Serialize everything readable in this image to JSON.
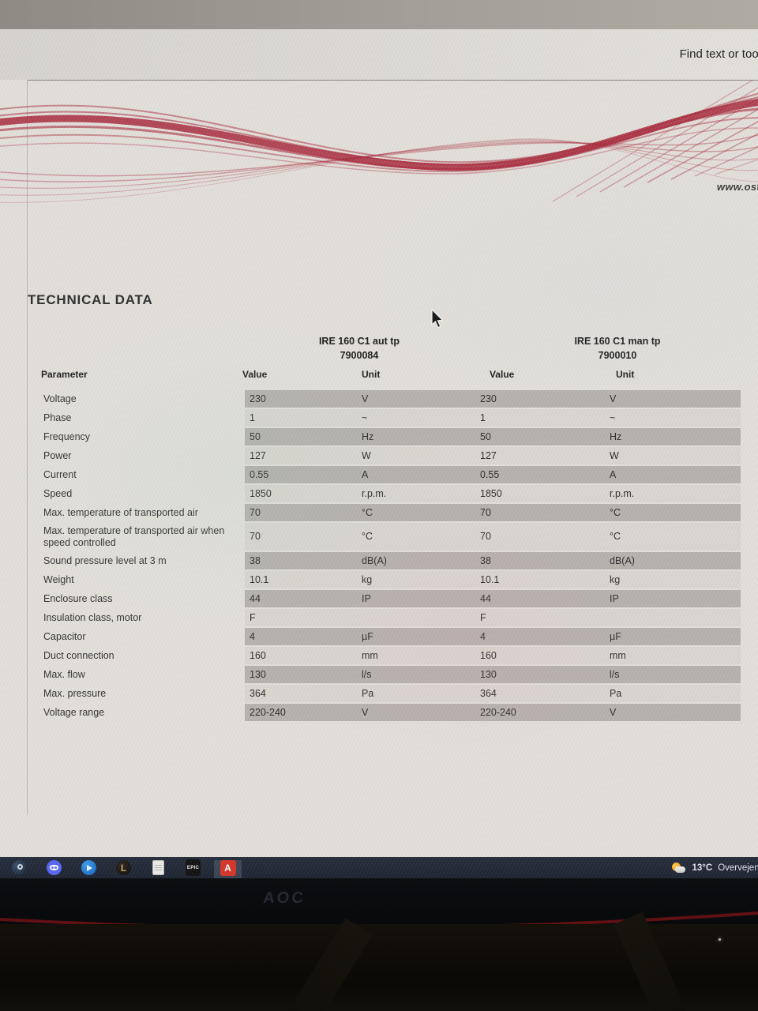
{
  "window": {
    "find_toolbar_label": "Find text or tool"
  },
  "page": {
    "title": "TECHNICAL DATA",
    "website": "www.ost",
    "products": [
      {
        "name": "IRE 160 C1 aut tp",
        "number": "7900084"
      },
      {
        "name": "IRE 160 C1 man tp",
        "number": "7900010"
      }
    ],
    "table": {
      "param_header": "Parameter",
      "value_header": "Value",
      "unit_header": "Unit",
      "rows": [
        {
          "parameter": "Voltage",
          "value1": "230",
          "unit1": "V",
          "value2": "230",
          "unit2": "V"
        },
        {
          "parameter": "Phase",
          "value1": "1",
          "unit1": "~",
          "value2": "1",
          "unit2": "~"
        },
        {
          "parameter": "Frequency",
          "value1": "50",
          "unit1": "Hz",
          "value2": "50",
          "unit2": "Hz"
        },
        {
          "parameter": "Power",
          "value1": "127",
          "unit1": "W",
          "value2": "127",
          "unit2": "W"
        },
        {
          "parameter": "Current",
          "value1": "0.55",
          "unit1": "A",
          "value2": "0.55",
          "unit2": "A"
        },
        {
          "parameter": "Speed",
          "value1": "1850",
          "unit1": "r.p.m.",
          "value2": "1850",
          "unit2": "r.p.m."
        },
        {
          "parameter": "Max. temperature of transported air",
          "value1": "70",
          "unit1": "°C",
          "value2": "70",
          "unit2": "°C"
        },
        {
          "parameter": "Max. temperature of transported air when speed controlled",
          "value1": "70",
          "unit1": "°C",
          "value2": "70",
          "unit2": "°C"
        },
        {
          "parameter": "Sound pressure level at 3 m",
          "value1": "38",
          "unit1": "dB(A)",
          "value2": "38",
          "unit2": "dB(A)"
        },
        {
          "parameter": "Weight",
          "value1": "10.1",
          "unit1": "kg",
          "value2": "10.1",
          "unit2": "kg"
        },
        {
          "parameter": "Enclosure class",
          "value1": "44",
          "unit1": "IP",
          "value2": "44",
          "unit2": "IP"
        },
        {
          "parameter": "Insulation class, motor",
          "value1": "F",
          "unit1": "",
          "value2": "F",
          "unit2": ""
        },
        {
          "parameter": "Capacitor",
          "value1": "4",
          "unit1": "µF",
          "value2": "4",
          "unit2": "µF"
        },
        {
          "parameter": "Duct connection",
          "value1": "160",
          "unit1": "mm",
          "value2": "160",
          "unit2": "mm"
        },
        {
          "parameter": "Max. flow",
          "value1": "130",
          "unit1": "l/s",
          "value2": "130",
          "unit2": "l/s"
        },
        {
          "parameter": "Max. pressure",
          "value1": "364",
          "unit1": "Pa",
          "value2": "364",
          "unit2": "Pa"
        },
        {
          "parameter": "Voltage range",
          "value1": "220-240",
          "unit1": "V",
          "value2": "220-240",
          "unit2": "V"
        }
      ]
    }
  },
  "taskbar": {
    "icons": [
      "steam-icon",
      "discord-icon",
      "blue-app-icon",
      "league-of-legends-icon",
      "notepad-icon",
      "epic-games-icon",
      "adobe-acrobat-icon"
    ],
    "epic_label": "EPIC",
    "acrobat_glyph": "A",
    "league_glyph": "L",
    "weather": {
      "temperature": "13°C",
      "condition": "Overvejend"
    }
  },
  "monitor": {
    "brand": "AOC"
  },
  "colors": {
    "ribbon_red": "#a82a3c",
    "stripe_dark": "#b6b1ac",
    "stripe_light": "#d9d5cf",
    "taskbar_bg": "#1d2330",
    "discord_blue": "#5865f2",
    "acrobat_red": "#d2382c",
    "league_gold": "#c9a55f",
    "page_bg": "#e2dfd9"
  }
}
